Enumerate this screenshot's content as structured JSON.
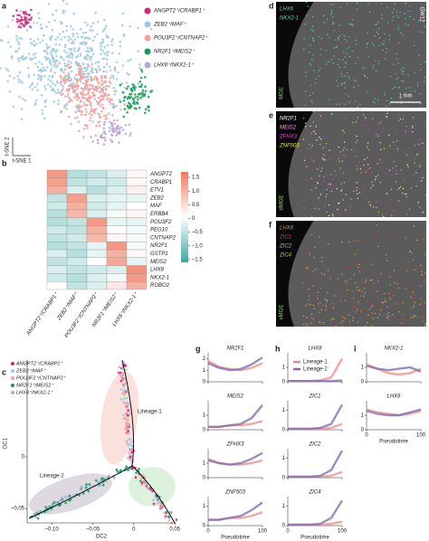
{
  "panel_a": {
    "label": "a",
    "xlabel": "t-SNE 1",
    "ylabel": "t-SNE 2",
    "groups": [
      {
        "name": "ANGPT2⁺/CRABP1⁺",
        "color": "#d6237c"
      },
      {
        "name": "ZEB2⁺/MAF⁺",
        "color": "#9ecae1"
      },
      {
        "name": "POU3F2⁺/CNTNAP2⁺",
        "color": "#f4a09a"
      },
      {
        "name": "NR2F1⁺/MEIS2⁺",
        "color": "#1a9c5b"
      },
      {
        "name": "LHX8⁺/NKX2-1⁺",
        "color": "#b9a4d8"
      }
    ]
  },
  "panel_b": {
    "label": "b",
    "genes": [
      "ANGPT2",
      "CRABP1",
      "ETV1",
      "ZEB2",
      "MAF",
      "ERBB4",
      "POU3F2",
      "PEG10",
      "CNTNAP2",
      "NR2F1",
      "GSTP1",
      "MEIS2",
      "LHX8",
      "NKX2-1",
      "ROBO2"
    ],
    "values": [
      [
        1.3,
        -0.6,
        -0.5,
        -0.3,
        0.1
      ],
      [
        1.2,
        -0.5,
        -0.4,
        -0.4,
        0.1
      ],
      [
        1.0,
        -0.3,
        -0.6,
        -0.3,
        0.2
      ],
      [
        -0.5,
        1.2,
        -0.3,
        -0.2,
        -0.2
      ],
      [
        -0.4,
        1.0,
        -0.4,
        -0.2,
        0.0
      ],
      [
        -0.6,
        0.9,
        -0.3,
        -0.1,
        0.1
      ],
      [
        -0.6,
        -0.5,
        1.3,
        -0.2,
        -0.2
      ],
      [
        -0.4,
        -0.5,
        1.0,
        0.0,
        -0.1
      ],
      [
        -0.5,
        -0.4,
        0.9,
        0.1,
        -0.1
      ],
      [
        -0.6,
        -0.5,
        -0.2,
        1.3,
        -0.1
      ],
      [
        -0.3,
        -0.6,
        -0.2,
        1.0,
        0.1
      ],
      [
        -0.5,
        -0.4,
        0.0,
        1.1,
        -0.2
      ],
      [
        -0.3,
        -0.5,
        -0.4,
        -0.3,
        1.4
      ],
      [
        -0.4,
        -0.6,
        -0.3,
        -0.1,
        1.3
      ],
      [
        0.0,
        -0.5,
        -0.3,
        0.3,
        1.0
      ]
    ],
    "clim": [
      -1.6,
      1.7
    ],
    "colorbar_ticks": [
      1.5,
      {
        "value": 1,
        "label": "1.0"
      },
      0.5,
      0,
      {
        "value": -0.5,
        "label": "–0.5"
      },
      {
        "value": -1,
        "label": "–1.0"
      },
      {
        "value": -1.5,
        "label": "–1.5"
      }
    ]
  },
  "images": [
    {
      "label": "d",
      "region": "MGE",
      "stage": "GW12",
      "scale": "1 mm",
      "markers": [
        {
          "text": "LHX6",
          "color": "#5fd3c8"
        },
        {
          "text": "NKX2-1",
          "color": "#5fd3c8"
        }
      ]
    },
    {
      "label": "e",
      "region": "dMGE",
      "markers": [
        {
          "text": "NR2F1",
          "color": "#ffffff"
        },
        {
          "text": "MEIS2",
          "color": "#f3a0e8"
        },
        {
          "text": "ZFHX3",
          "color": "#e040d0"
        },
        {
          "text": "ZNF503",
          "color": "#e8e04a"
        }
      ]
    },
    {
      "label": "f",
      "region": "vMGE",
      "markers": [
        {
          "text": "LHX8",
          "color": "#f08a40"
        },
        {
          "text": "ZIC1",
          "color": "#e04030"
        },
        {
          "text": "ZIC2",
          "color": "#f4a090"
        },
        {
          "text": "ZIC4",
          "color": "#f0b040"
        }
      ]
    }
  ],
  "panel_c": {
    "label": "c",
    "xlabel": "DC2",
    "ylabel": "DC1",
    "xlim": [
      -0.13,
      0.052
    ],
    "ylim": [
      -0.064,
      0.094
    ],
    "xticks": [
      {
        "value": -0.1,
        "label": "–0.10"
      },
      {
        "value": -0.05,
        "label": "–0.05"
      },
      0,
      0.05
    ],
    "yticks": [
      0,
      {
        "value": -0.05,
        "label": "–0.05"
      }
    ],
    "annotations": [
      "Lineage-1",
      "Lineage-2"
    ]
  },
  "lines": {
    "x": [
      0,
      20,
      40,
      60,
      80,
      100
    ],
    "xlim": [
      0,
      100
    ],
    "xticks": [
      0,
      100
    ],
    "xlabel": "Pseudotime",
    "legend": [
      {
        "name": "Lineage-1",
        "color": "#f08a80"
      },
      {
        "name": "Lineage-2",
        "color": "#7b68b0"
      }
    ],
    "panels": [
      {
        "label": "g",
        "plots": [
          {
            "gene": "NR2F1",
            "ylim": [
              0,
              2.5
            ],
            "yticks": [
              0,
              1,
              2
            ],
            "values": [
              [
                1.8,
                1.3,
                1.1,
                1.0,
                1.2,
                1.6
              ],
              [
                1.6,
                1.2,
                1.0,
                1.1,
                1.5,
                2.1
              ]
            ]
          },
          {
            "gene": "MEIS2",
            "ylim": [
              0,
              2
            ],
            "yticks": [
              0,
              1
            ],
            "values": [
              [
                0.2,
                0.2,
                0.3,
                0.3,
                0.4,
                0.6
              ],
              [
                0.2,
                0.2,
                0.3,
                0.4,
                0.8,
                1.7
              ]
            ]
          },
          {
            "gene": "ZFHX3",
            "ylim": [
              0,
              2
            ],
            "yticks": [
              0,
              1
            ],
            "values": [
              [
                1.3,
                1.0,
                0.9,
                0.9,
                1.0,
                1.2
              ],
              [
                1.2,
                1.0,
                0.9,
                1.0,
                1.3,
                1.7
              ]
            ]
          },
          {
            "gene": "ZNF503",
            "ylim": [
              0,
              1.5
            ],
            "yticks": [
              0,
              1
            ],
            "values": [
              [
                0.3,
                0.3,
                0.4,
                0.4,
                0.5,
                0.7
              ],
              [
                0.3,
                0.3,
                0.4,
                0.5,
                0.8,
                1.2
              ]
            ]
          }
        ]
      },
      {
        "label": "h",
        "plots": [
          {
            "gene": "LHX8",
            "ylim": [
              0,
              2
            ],
            "yticks": [
              0,
              1
            ],
            "values": [
              [
                0.05,
                0.05,
                0.05,
                0.1,
                0.3,
                1.6
              ],
              [
                0.05,
                0.05,
                0.05,
                0.05,
                0.05,
                0.1
              ]
            ]
          },
          {
            "gene": "ZIC1",
            "ylim": [
              0,
              1.5
            ],
            "yticks": [
              0,
              1
            ],
            "values": [
              [
                0.05,
                0.05,
                0.05,
                0.05,
                0.1,
                0.3
              ],
              [
                0.05,
                0.05,
                0.05,
                0.1,
                0.3,
                1.3
              ]
            ]
          },
          {
            "gene": "ZIC2",
            "ylim": [
              0,
              1.5
            ],
            "yticks": [
              0,
              1
            ],
            "values": [
              [
                0.05,
                0.05,
                0.05,
                0.05,
                0.1,
                0.3
              ],
              [
                0.05,
                0.05,
                0.05,
                0.1,
                0.4,
                1.4
              ]
            ]
          },
          {
            "gene": "ZIC4",
            "ylim": [
              0,
              1.5
            ],
            "yticks": [
              0,
              1
            ],
            "values": [
              [
                0.05,
                0.05,
                0.05,
                0.05,
                0.1,
                0.2
              ],
              [
                0.05,
                0.05,
                0.05,
                0.1,
                0.4,
                1.3
              ]
            ]
          }
        ]
      },
      {
        "label": "i",
        "plots": [
          {
            "gene": "NKX2-1",
            "ylim": [
              0,
              2
            ],
            "yticks": [
              0,
              1
            ],
            "values": [
              [
                1.2,
                0.9,
                0.6,
                0.5,
                0.6,
                0.9
              ],
              [
                1.1,
                0.9,
                0.8,
                0.9,
                1.0,
                0.7
              ]
            ]
          },
          {
            "gene": "LHX6",
            "ylim": [
              0,
              2
            ],
            "yticks": [
              0,
              1
            ],
            "values": [
              [
                1.4,
                1.2,
                1.1,
                1.0,
                1.1,
                1.3
              ],
              [
                1.3,
                1.1,
                1.0,
                1.0,
                1.2,
                1.4
              ]
            ]
          }
        ]
      }
    ]
  }
}
